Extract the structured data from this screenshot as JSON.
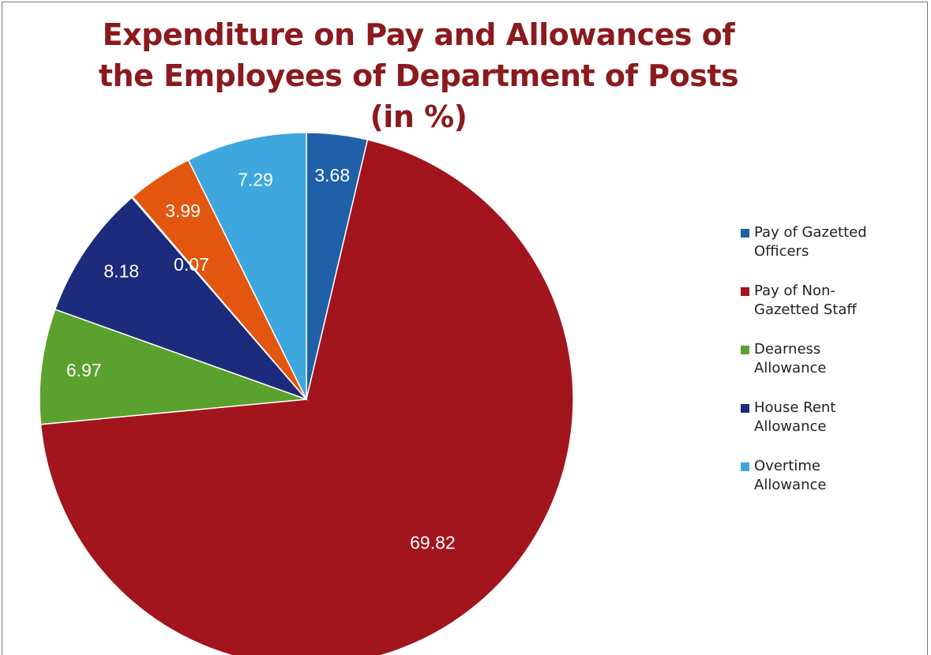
{
  "chart_data": {
    "type": "pie",
    "title": "Expenditure on Pay and Allowances of the Employees of Department of Posts (in %)",
    "categories": [
      "Pay of Gazetted Officers",
      "Pay of Non-Gazetted Staff",
      "Dearness Allowance",
      "House Rent Allowance",
      null,
      null,
      "Overtime Allowance"
    ],
    "values": [
      3.68,
      69.82,
      6.97,
      8.18,
      0.07,
      3.99,
      7.29
    ],
    "colors": [
      "#1f60a8",
      "#a3151d",
      "#5ba12d",
      "#1d2b7c",
      "#8a1f22",
      "#e3560f",
      "#3ea7dd"
    ],
    "legend": "right"
  }
}
